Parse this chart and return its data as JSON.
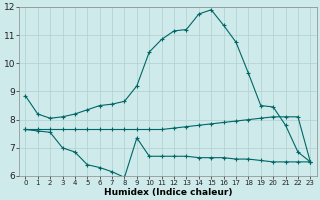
{
  "xlabel": "Humidex (Indice chaleur)",
  "xlim": [
    -0.5,
    23.5
  ],
  "ylim": [
    6,
    12
  ],
  "yticks": [
    6,
    7,
    8,
    9,
    10,
    11,
    12
  ],
  "xticks": [
    0,
    1,
    2,
    3,
    4,
    5,
    6,
    7,
    8,
    9,
    10,
    11,
    12,
    13,
    14,
    15,
    16,
    17,
    18,
    19,
    20,
    21,
    22,
    23
  ],
  "bg_color": "#ceeaea",
  "grid_color": "#b0d0d0",
  "line_color": "#006666",
  "line1_x": [
    0,
    1,
    2,
    3,
    4,
    5,
    6,
    7,
    8,
    9,
    10,
    11,
    12,
    13,
    14,
    15,
    16,
    17,
    18,
    19,
    20,
    21,
    22,
    23
  ],
  "line1_y": [
    8.85,
    8.2,
    8.05,
    8.1,
    8.2,
    8.35,
    8.5,
    8.55,
    8.65,
    9.2,
    10.4,
    10.85,
    11.15,
    11.2,
    11.75,
    11.9,
    11.35,
    10.75,
    9.65,
    8.5,
    8.45,
    7.8,
    6.85,
    6.5
  ],
  "line2_x": [
    0,
    1,
    2,
    3,
    4,
    5,
    6,
    7,
    8,
    9,
    10,
    11,
    12,
    13,
    14,
    15,
    16,
    17,
    18,
    19,
    20,
    21,
    22,
    23
  ],
  "line2_y": [
    7.65,
    7.65,
    7.65,
    7.65,
    7.65,
    7.65,
    7.65,
    7.65,
    7.65,
    7.65,
    7.65,
    7.65,
    7.7,
    7.75,
    7.8,
    7.85,
    7.9,
    7.95,
    8.0,
    8.05,
    8.1,
    8.1,
    8.1,
    6.5
  ],
  "line3_x": [
    0,
    1,
    2,
    3,
    4,
    5,
    6,
    7,
    8,
    9,
    10,
    11,
    12,
    13,
    14,
    15,
    16,
    17,
    18,
    19,
    20,
    21,
    22,
    23
  ],
  "line3_y": [
    7.65,
    7.6,
    7.55,
    7.0,
    6.85,
    6.4,
    6.3,
    6.15,
    5.95,
    7.35,
    6.7,
    6.7,
    6.7,
    6.7,
    6.65,
    6.65,
    6.65,
    6.6,
    6.6,
    6.55,
    6.5,
    6.5,
    6.5,
    6.5
  ]
}
